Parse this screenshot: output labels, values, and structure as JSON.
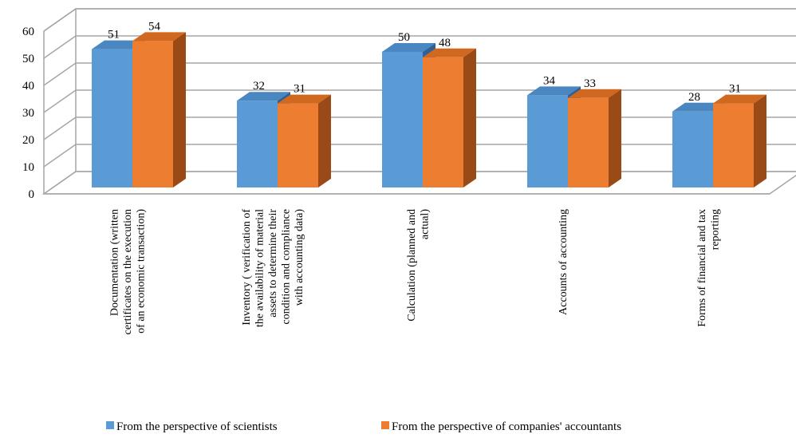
{
  "chart_data": {
    "type": "bar",
    "title": "",
    "xlabel": "",
    "ylabel": "",
    "ylim": [
      0,
      60
    ],
    "yticks": [
      0,
      10,
      20,
      30,
      40,
      50,
      60
    ],
    "grid": true,
    "style": "3d-clustered-column",
    "legend_position": "bottom",
    "categories": [
      [
        "Documentation (written",
        "certificates on the execution",
        "of an economic transaction)"
      ],
      [
        "Inventory ( verification of",
        "the availability of material",
        "assets to determine their",
        "condition and compliance",
        "with accounting data)"
      ],
      [
        "Calculation (planned and",
        "actual)"
      ],
      [
        "Accounts of accounting"
      ],
      [
        "Forms of financial and tax",
        "reporting"
      ]
    ],
    "series": [
      {
        "name": "From the perspective of scientists",
        "values": [
          51,
          32,
          50,
          34,
          28
        ],
        "color": "#5B9BD5",
        "top_color": "#4A86C0",
        "side_color": "#2E6199"
      },
      {
        "name": "From the perspective of companies' accountants",
        "values": [
          54,
          31,
          48,
          33,
          31
        ],
        "color": "#ED7D31",
        "top_color": "#D0691F",
        "side_color": "#9A4A16"
      }
    ]
  }
}
